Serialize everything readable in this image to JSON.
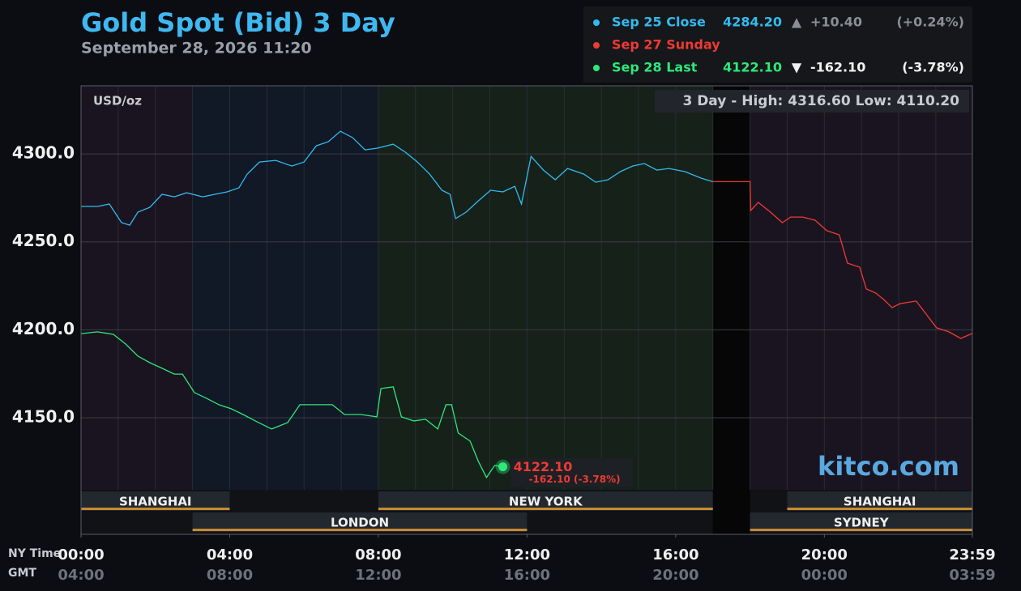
{
  "chart_data": {
    "type": "line",
    "title": "Gold Spot (Bid) 3 Day",
    "subtitle": "September 28, 2026 11:20",
    "unit": "USD/oz",
    "range_label": "3 Day - High: 4316.60  Low: 4110.20",
    "watermark": "kitco.com",
    "x_axis_labels": [
      "NY Time",
      "GMT"
    ],
    "xlim": [
      0,
      23.983
    ],
    "xticks": [
      {
        "value": 0,
        "label": "00:00"
      },
      {
        "value": 4,
        "label": "04:00"
      },
      {
        "value": 8,
        "label": "08:00"
      },
      {
        "value": 12,
        "label": "12:00"
      },
      {
        "value": 16,
        "label": "16:00"
      },
      {
        "value": 20,
        "label": "20:00"
      },
      {
        "value": 23.983,
        "label": "23:59"
      }
    ],
    "gmt_labels": [
      "04:00",
      "08:00",
      "12:00",
      "16:00",
      "20:00",
      "00:00",
      "03:59"
    ],
    "ylim": [
      4083.7,
      4338.7
    ],
    "yticks": [
      {
        "value": 4150,
        "label": "4150.0"
      },
      {
        "value": 4200,
        "label": "4200.0"
      },
      {
        "value": 4250,
        "label": "4250.0"
      },
      {
        "value": 4300,
        "label": "4300.0"
      }
    ],
    "grid": true,
    "series": [
      {
        "name": "Sep 25 Close",
        "color": "#33bbee",
        "legend_text": [
          "4284.20",
          "▲",
          "+10.40",
          "(+0.24%)"
        ],
        "x": [
          0,
          0.44,
          0.76,
          1.09,
          1.31,
          1.53,
          1.85,
          2.18,
          2.51,
          2.84,
          3.27,
          3.6,
          3.93,
          4.25,
          4.47,
          4.8,
          5.24,
          5.67,
          6.0,
          6.33,
          6.65,
          6.98,
          7.31,
          7.64,
          7.96,
          8.4,
          8.73,
          9.05,
          9.38,
          9.71,
          9.93,
          10.08,
          10.36,
          10.69,
          11.02,
          11.35,
          11.67,
          11.85,
          12.11,
          12.44,
          12.76,
          13.09,
          13.53,
          13.85,
          14.18,
          14.51,
          14.84,
          15.16,
          15.49,
          15.82,
          16.25,
          16.69,
          17.0
        ],
        "values": [
          4270.1,
          4270.1,
          4271.5,
          4260.9,
          4259.5,
          4266.9,
          4269.6,
          4277.0,
          4275.6,
          4277.9,
          4275.6,
          4277.0,
          4278.4,
          4280.7,
          4288.5,
          4295.4,
          4296.3,
          4293.1,
          4295.4,
          4304.6,
          4306.9,
          4312.9,
          4309.2,
          4302.3,
          4303.2,
          4305.5,
          4300.9,
          4295.4,
          4288.5,
          4279.3,
          4277.0,
          4263.2,
          4266.9,
          4273.3,
          4279.3,
          4278.4,
          4281.6,
          4271.5,
          4298.6,
          4290.8,
          4285.3,
          4291.7,
          4288.5,
          4283.9,
          4285.3,
          4289.9,
          4293.1,
          4294.5,
          4290.8,
          4291.7,
          4289.9,
          4286.2,
          4284.2
        ]
      },
      {
        "name": "Sep 27 Sunday",
        "color": "#ee3b33",
        "x": [
          17.0,
          18.0,
          18.02,
          18.22,
          18.55,
          18.87,
          19.09,
          19.42,
          19.75,
          20.07,
          20.4,
          20.62,
          20.95,
          21.13,
          21.38,
          21.6,
          21.82,
          22.04,
          22.47,
          22.69,
          23.02,
          23.35,
          23.67,
          23.98
        ],
        "values": [
          4284.2,
          4284.2,
          4267.8,
          4272.4,
          4266.9,
          4260.9,
          4264.1,
          4264.1,
          4262.3,
          4256.3,
          4254.0,
          4237.9,
          4235.6,
          4223.2,
          4220.9,
          4217.2,
          4212.6,
          4214.9,
          4216.3,
          4210.3,
          4201.1,
          4198.8,
          4195.1,
          4197.9
        ]
      },
      {
        "name": "Sep 28 Last",
        "color": "#2ee87a",
        "legend_text": [
          "4122.10",
          "▼",
          "-162.10",
          "(-3.78%)"
        ],
        "last_label": [
          "4122.10",
          "-162.10 (-3.78%)"
        ],
        "x": [
          0,
          0.44,
          0.87,
          1.2,
          1.53,
          1.85,
          2.18,
          2.51,
          2.73,
          3.05,
          3.38,
          3.71,
          4.04,
          4.36,
          4.69,
          5.13,
          5.56,
          5.89,
          6.33,
          6.76,
          7.09,
          7.53,
          7.96,
          8.07,
          8.4,
          8.62,
          8.95,
          9.27,
          9.6,
          9.82,
          9.97,
          10.15,
          10.47,
          10.69,
          10.91,
          11.13,
          11.35
        ],
        "values": [
          4197.8,
          4198.8,
          4197.4,
          4191.9,
          4185.0,
          4181.3,
          4178.1,
          4174.8,
          4174.8,
          4164.3,
          4161.0,
          4157.4,
          4155.1,
          4151.8,
          4148.2,
          4143.6,
          4147.2,
          4157.4,
          4157.4,
          4157.4,
          4151.8,
          4151.8,
          4150.5,
          4166.6,
          4167.5,
          4150.5,
          4148.2,
          4149.1,
          4143.6,
          4157.4,
          4157.4,
          4141.3,
          4136.7,
          4125.2,
          4116.0,
          4122.9,
          4122.1
        ]
      }
    ],
    "sessions": [
      [
        {
          "name": "SHANGHAI",
          "start": 0,
          "end": 4
        },
        {
          "name": "NEW YORK",
          "start": 8,
          "end": 17
        },
        {
          "name": "SHANGHAI",
          "start": 19,
          "end": 23.983
        }
      ],
      [
        {
          "name": "LONDON",
          "start": 3,
          "end": 12
        },
        {
          "name": "SYDNEY",
          "start": 18,
          "end": 23.983
        }
      ]
    ]
  }
}
